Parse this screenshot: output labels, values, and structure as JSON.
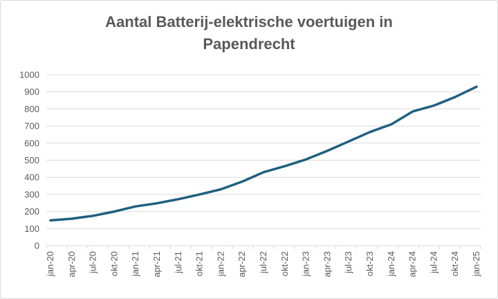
{
  "chart_data": {
    "type": "line",
    "title_line1": "Aantal Batterij-elektrische voertuigen in",
    "title_line2": "Papendrecht",
    "xlabel": "",
    "ylabel": "",
    "ylim": [
      0,
      1000
    ],
    "yticks": [
      0,
      100,
      200,
      300,
      400,
      500,
      600,
      700,
      800,
      900,
      1000
    ],
    "grid": true,
    "legend": "none",
    "line_color": "#1f5f7f",
    "grid_color": "#d9d9d9",
    "categories": [
      "jan-20",
      "apr-20",
      "jul-20",
      "okt-20",
      "jan-21",
      "apr-21",
      "jul-21",
      "okt-21",
      "jan-22",
      "apr-22",
      "jul-22",
      "okt-22",
      "jan-23",
      "apr-23",
      "jul-23",
      "okt-23",
      "jan-24",
      "apr-24",
      "jul-24",
      "okt-24",
      "jan-25"
    ],
    "series": [
      {
        "values": [
          148,
          158,
          175,
          200,
          230,
          248,
          272,
          300,
          330,
          375,
          430,
          465,
          505,
          555,
          610,
          665,
          710,
          785,
          820,
          870,
          930
        ]
      }
    ]
  }
}
